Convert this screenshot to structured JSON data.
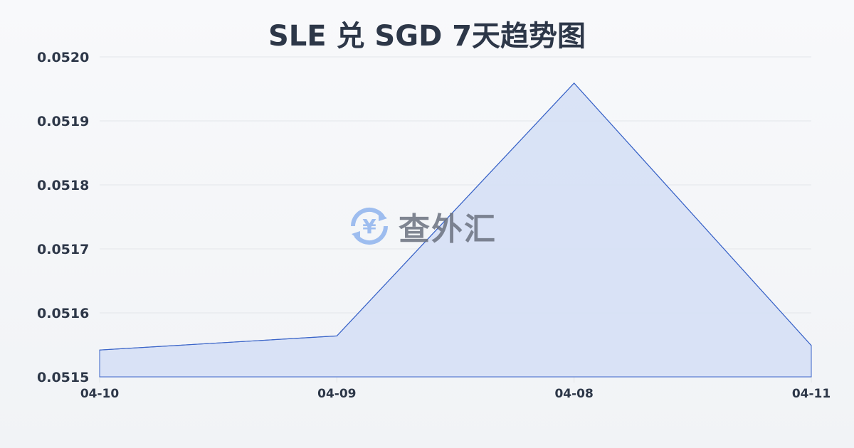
{
  "chart_data": {
    "type": "area",
    "title": "SLE 兑 SGD 7天趋势图",
    "categories": [
      "04-10",
      "04-09",
      "04-08",
      "04-11"
    ],
    "values": [
      0.051542,
      0.051564,
      0.051959,
      0.051549
    ],
    "yticks": [
      "0.0520",
      "0.0519",
      "0.0518",
      "0.0517",
      "0.0516",
      "0.0515"
    ],
    "ylim": [
      0.0515,
      0.052
    ],
    "xlabel": "",
    "ylabel": "",
    "grid": true,
    "colors": {
      "line": "#3a64c8",
      "fill": "#d6e0f5",
      "grid": "#e3e6ea",
      "text": "#2d3748"
    }
  },
  "watermark": {
    "text": "查外汇",
    "symbol": "¥",
    "icon": "currency-exchange-icon"
  }
}
